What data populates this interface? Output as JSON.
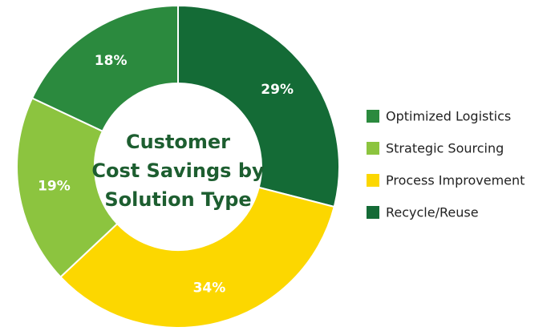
{
  "chart_data": {
    "type": "donut",
    "title": [
      "Customer",
      "Cost Savings by",
      "Solution Type"
    ],
    "categories": [
      "Optimized Logistics",
      "Strategic Sourcing",
      "Process Improvement",
      "Recycle/Reuse"
    ],
    "values": [
      18,
      19,
      34,
      29
    ],
    "value_labels": [
      "18%",
      "19%",
      "34%",
      "29%"
    ],
    "colors": [
      "#2b8a3e",
      "#8cc43f",
      "#fcd700",
      "#146b36"
    ],
    "legend": "right"
  }
}
